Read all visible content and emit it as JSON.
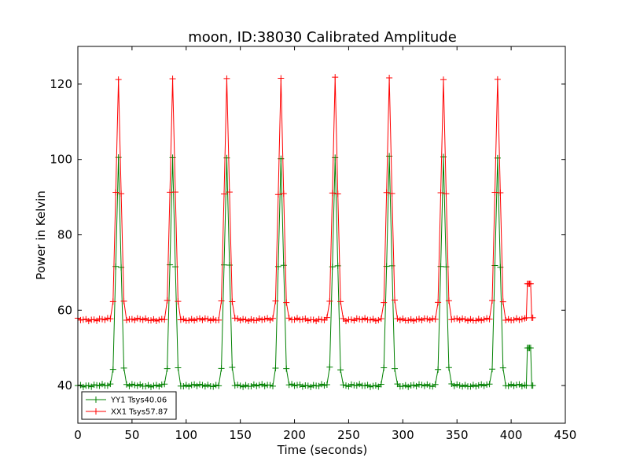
{
  "chart_data": {
    "type": "line",
    "title": "moon, ID:38030 Calibrated Amplitude",
    "xlabel": "Time (seconds)",
    "ylabel": "Power in Kelvin",
    "xlim": [
      0,
      450
    ],
    "ylim": [
      30,
      130
    ],
    "xticks": [
      0,
      50,
      100,
      150,
      200,
      250,
      300,
      350,
      400,
      450
    ],
    "yticks": [
      40,
      60,
      80,
      100,
      120
    ],
    "grid": false,
    "legend_position": "lower-left",
    "peaks_x": [
      37.5,
      87.5,
      137.5,
      187.5,
      237.5,
      287.5,
      337.5,
      387.5
    ],
    "series": [
      {
        "name": "YY1 Tsys40.06",
        "color": "#008000",
        "baseline": 40,
        "peak": 100.5,
        "tail": [
          [
            414,
            40
          ],
          [
            415,
            50
          ],
          [
            416,
            50
          ],
          [
            417,
            50
          ],
          [
            418,
            50
          ],
          [
            419,
            40
          ],
          [
            420,
            40
          ]
        ]
      },
      {
        "name": "XX1 Tsys57.87",
        "color": "#ff0000",
        "baseline": 57.5,
        "peak": 121.5,
        "tail": [
          [
            414,
            58
          ],
          [
            415,
            67
          ],
          [
            416,
            67
          ],
          [
            417,
            67
          ],
          [
            418,
            67
          ],
          [
            419,
            58
          ],
          [
            420,
            58
          ]
        ]
      }
    ]
  }
}
